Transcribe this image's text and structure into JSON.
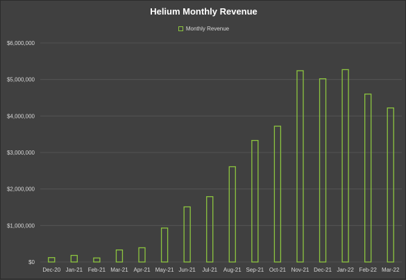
{
  "chart_data": {
    "type": "bar",
    "title": "Helium Monthly Revenue",
    "xlabel": "",
    "ylabel": "",
    "legend": {
      "position": "top",
      "entries": [
        "Monthly Revenue"
      ]
    },
    "grid": true,
    "ylim": [
      0,
      6000000
    ],
    "yticks": [
      0,
      1000000,
      2000000,
      3000000,
      4000000,
      5000000,
      6000000
    ],
    "ytick_labels": [
      "$0",
      "$1,000,000",
      "$2,000,000",
      "$3,000,000",
      "$4,000,000",
      "$5,000,000",
      "$6,000,000"
    ],
    "categories": [
      "Dec-20",
      "Jan-21",
      "Feb-21",
      "Mar-21",
      "Apr-21",
      "May-21",
      "Jun-21",
      "Jul-21",
      "Aug-21",
      "Sep-21",
      "Oct-21",
      "Nov-21",
      "Dec-21",
      "Jan-22",
      "Feb-22",
      "Mar-22"
    ],
    "series": [
      {
        "name": "Monthly Revenue",
        "values": [
          120000,
          180000,
          110000,
          330000,
          390000,
          930000,
          1510000,
          1790000,
          2610000,
          3330000,
          3720000,
          5240000,
          5020000,
          5270000,
          4600000,
          4220000
        ]
      }
    ],
    "colors": {
      "bar_outline": "#8dc63f",
      "background": "#404040",
      "gridline": "#595959",
      "text": "#d9d9d9",
      "title": "#ffffff"
    }
  }
}
